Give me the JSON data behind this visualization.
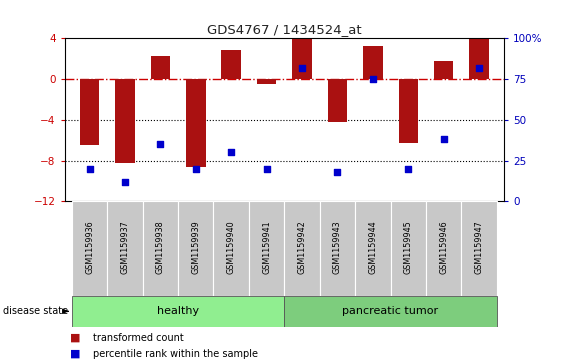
{
  "title": "GDS4767 / 1434524_at",
  "samples": [
    "GSM1159936",
    "GSM1159937",
    "GSM1159938",
    "GSM1159939",
    "GSM1159940",
    "GSM1159941",
    "GSM1159942",
    "GSM1159943",
    "GSM1159944",
    "GSM1159945",
    "GSM1159946",
    "GSM1159947"
  ],
  "bar_values": [
    -6.5,
    -8.2,
    2.2,
    -8.6,
    2.8,
    -0.5,
    4.0,
    -4.2,
    3.2,
    -6.3,
    1.8,
    3.9
  ],
  "percentile_values": [
    20,
    12,
    35,
    20,
    30,
    20,
    82,
    18,
    75,
    20,
    38,
    82
  ],
  "ylim_left": [
    -12,
    4
  ],
  "ylim_right": [
    0,
    100
  ],
  "yticks_left": [
    4,
    0,
    -4,
    -8,
    -12
  ],
  "yticks_right": [
    100,
    75,
    50,
    25,
    0
  ],
  "bar_color": "#aa1111",
  "dot_color": "#0000cc",
  "hline_color": "#cc0000",
  "dotline_color": "#000000",
  "healthy_color": "#90ee90",
  "tumor_color": "#7dcd7d",
  "healthy_samples": 6,
  "disease_groups": [
    {
      "label": "healthy",
      "count": 6
    },
    {
      "label": "pancreatic tumor",
      "count": 6
    }
  ],
  "xlabel_area_color": "#c8c8c8",
  "legend_bar_label": "transformed count",
  "legend_dot_label": "percentile rank within the sample",
  "bar_width": 0.55
}
